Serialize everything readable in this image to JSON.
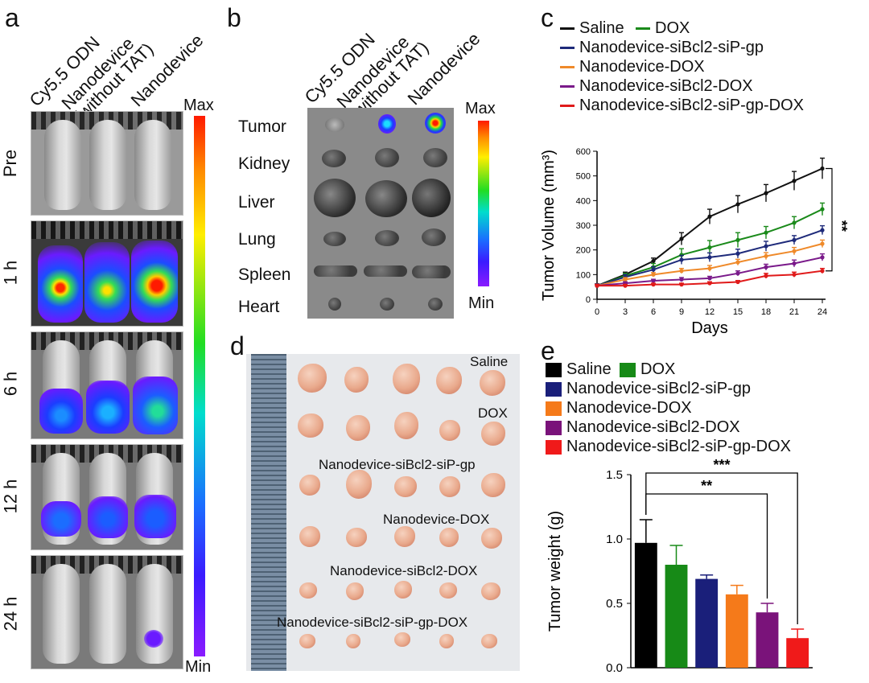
{
  "panels": {
    "a": {
      "label": "a",
      "columns": [
        "Cy5.5 ODN",
        "Nanodevice\n(without TAT)",
        "Nanodevice"
      ],
      "timepoints": [
        "Pre",
        "1 h",
        "6 h",
        "12 h",
        "24 h"
      ],
      "scale_max": "Max",
      "scale_min": "Min"
    },
    "b": {
      "label": "b",
      "columns": [
        "Cy5.5 ODN",
        "Nanodevice\n(without TAT)",
        "Nanodevice"
      ],
      "organs": [
        "Tumor",
        "Kidney",
        "Liver",
        "Lung",
        "Spleen",
        "Heart"
      ],
      "scale_max": "Max",
      "scale_min": "Min"
    },
    "d": {
      "label": "d",
      "groups": [
        "Saline",
        "DOX",
        "Nanodevice-siBcl2-siP-gp",
        "Nanodevice-DOX",
        "Nanodevice-siBcl2-DOX",
        "Nanodevice-siBcl2-siP-gp-DOX"
      ]
    },
    "c_label": "c",
    "e_label": "e"
  },
  "chart_data": [
    {
      "type": "line",
      "panel": "c",
      "xlabel": "Days",
      "ylabel": "Tumor Volume (mm³)",
      "x": [
        0,
        3,
        6,
        9,
        12,
        15,
        18,
        21,
        24
      ],
      "xlim": [
        0,
        24
      ],
      "ylim": [
        0,
        600
      ],
      "yticks": [
        0,
        100,
        200,
        300,
        400,
        500,
        600
      ],
      "annotation": "**",
      "series": [
        {
          "name": "Saline",
          "color": "#111111",
          "values": [
            55,
            100,
            155,
            245,
            335,
            385,
            430,
            480,
            530
          ],
          "errors": [
            8,
            10,
            12,
            25,
            30,
            35,
            35,
            38,
            42
          ]
        },
        {
          "name": "DOX",
          "color": "#1a8a1a",
          "values": [
            55,
            95,
            130,
            180,
            210,
            240,
            270,
            310,
            365
          ],
          "errors": [
            8,
            10,
            15,
            25,
            28,
            30,
            25,
            25,
            25
          ]
        },
        {
          "name": "Nanodevice-siBcl2-siP-gp",
          "color": "#1e2a7a",
          "values": [
            55,
            90,
            120,
            160,
            170,
            185,
            215,
            240,
            280
          ],
          "errors": [
            8,
            10,
            12,
            18,
            18,
            18,
            20,
            18,
            18
          ]
        },
        {
          "name": "Nanodevice-DOX",
          "color": "#ef8a2a",
          "values": [
            55,
            80,
            100,
            115,
            125,
            150,
            175,
            195,
            225
          ],
          "errors": [
            6,
            8,
            8,
            10,
            12,
            12,
            14,
            15,
            15
          ]
        },
        {
          "name": "Nanodevice-siBcl2-DOX",
          "color": "#7a1a8a",
          "values": [
            55,
            65,
            75,
            80,
            85,
            105,
            130,
            145,
            170
          ],
          "errors": [
            5,
            6,
            6,
            8,
            8,
            10,
            12,
            14,
            14
          ]
        },
        {
          "name": "Nanodevice-siBcl2-siP-gp-DOX",
          "color": "#e01a1a",
          "values": [
            55,
            55,
            60,
            60,
            65,
            70,
            95,
            100,
            115
          ],
          "errors": [
            5,
            5,
            5,
            5,
            6,
            6,
            10,
            10,
            10
          ]
        }
      ],
      "legend": "top"
    },
    {
      "type": "bar",
      "panel": "e",
      "ylabel": "Tumor weight (g)",
      "ylim": [
        0,
        1.5
      ],
      "yticks": [
        "0.0",
        "0.5",
        "1.0",
        "1.5"
      ],
      "categories": [
        "Saline",
        "DOX",
        "Nanodevice-siBcl2-siP-gp",
        "Nanodevice-DOX",
        "Nanodevice-siBcl2-DOX",
        "Nanodevice-siBcl2-siP-gp-DOX"
      ],
      "colors": [
        "#000000",
        "#178a17",
        "#1a1f7a",
        "#f57a1a",
        "#7a137a",
        "#f01a1a"
      ],
      "values": [
        0.97,
        0.8,
        0.69,
        0.57,
        0.43,
        0.23
      ],
      "errors": [
        0.18,
        0.15,
        0.03,
        0.07,
        0.07,
        0.07
      ],
      "significance": [
        {
          "from": "Saline",
          "to": "Nanodevice-siBcl2-DOX",
          "label": "**"
        },
        {
          "from": "Saline",
          "to": "Nanodevice-siBcl2-siP-gp-DOX",
          "label": "***"
        }
      ],
      "legend": "top"
    }
  ]
}
